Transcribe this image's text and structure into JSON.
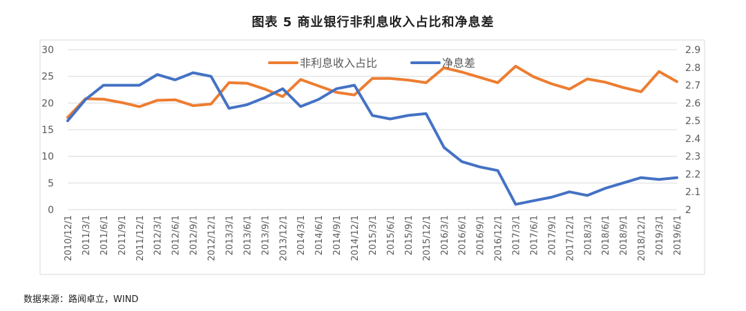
{
  "page": {
    "title": "图表 5 商业银行非利息收入占比和净息差",
    "source": "数据来源：路闻卓立，WIND"
  },
  "chart_data": {
    "type": "line",
    "title": "图表 5 商业银行非利息收入占比和净息差",
    "x": [
      "2010/12/1",
      "2011/3/1",
      "2011/6/1",
      "2011/9/1",
      "2011/12/1",
      "2012/3/1",
      "2012/6/1",
      "2012/9/1",
      "2012/12/1",
      "2013/3/1",
      "2013/6/1",
      "2013/9/1",
      "2013/12/1",
      "2014/3/1",
      "2014/6/1",
      "2014/9/1",
      "2014/12/1",
      "2015/3/1",
      "2015/6/1",
      "2015/9/1",
      "2015/12/1",
      "2016/3/1",
      "2016/6/1",
      "2016/9/1",
      "2016/12/1",
      "2017/3/1",
      "2017/6/1",
      "2017/9/1",
      "2017/12/1",
      "2018/3/1",
      "2018/6/1",
      "2018/9/1",
      "2018/12/1",
      "2019/3/1",
      "2019/6/1"
    ],
    "x_tick_labels": [
      "2010/12/1",
      "2011/3/1",
      "2011/6/1",
      "2011/9/1",
      "2011/12/1",
      "2012/3/1",
      "2012/6/1",
      "2012/9/1",
      "2012/12/1",
      "2013/3/1",
      "2013/6/1",
      "2013/9/1",
      "2013/12/1",
      "2014/3/1",
      "2014/6/1",
      "2014/9/1",
      "2014/12/1",
      "2015/3/1",
      "2015/6/1",
      "2015/9/1",
      "2015/12/1",
      "2016/3/1",
      "2016/6/1",
      "2016/9/1",
      "2016/12/1",
      "2017/3/1",
      "2017/6/1",
      "2017/9/1",
      "2017/12/1",
      "2018/3/1",
      "2018/6/1",
      "2018/9/1",
      "2018/12/1",
      "2019/3/1",
      "2019/6/1"
    ],
    "series": [
      {
        "name": "非利息收入占比",
        "axis": "left",
        "color": "#ED7D31",
        "values": [
          17.3,
          20.8,
          20.7,
          20.1,
          19.3,
          20.5,
          20.6,
          19.5,
          19.8,
          23.8,
          23.7,
          22.6,
          21.2,
          24.4,
          23.2,
          22.0,
          21.5,
          24.6,
          24.6,
          24.3,
          23.8,
          26.6,
          25.8,
          24.8,
          23.8,
          26.9,
          24.9,
          23.6,
          22.6,
          24.5,
          23.9,
          22.9,
          22.1,
          25.9,
          24.0
        ]
      },
      {
        "name": "净息差",
        "axis": "right",
        "color": "#4472C4",
        "values": [
          2.5,
          2.62,
          2.7,
          2.7,
          2.7,
          2.76,
          2.73,
          2.77,
          2.75,
          2.57,
          2.59,
          2.63,
          2.68,
          2.58,
          2.62,
          2.68,
          2.7,
          2.53,
          2.51,
          2.53,
          2.54,
          2.35,
          2.27,
          2.24,
          2.22,
          2.03,
          2.05,
          2.07,
          2.1,
          2.08,
          2.12,
          2.15,
          2.18,
          2.17,
          2.18
        ]
      }
    ],
    "y_left": {
      "ylim": [
        0,
        30
      ],
      "ticks": [
        "0",
        "5",
        "10",
        "15",
        "20",
        "25",
        "30"
      ]
    },
    "y_right": {
      "ylim": [
        2,
        2.9
      ],
      "ticks": [
        "2",
        "2.1",
        "2.2",
        "2.3",
        "2.4",
        "2.5",
        "2.6",
        "2.7",
        "2.8",
        "2.9"
      ]
    },
    "grid": true,
    "legend_position": "top-center"
  }
}
